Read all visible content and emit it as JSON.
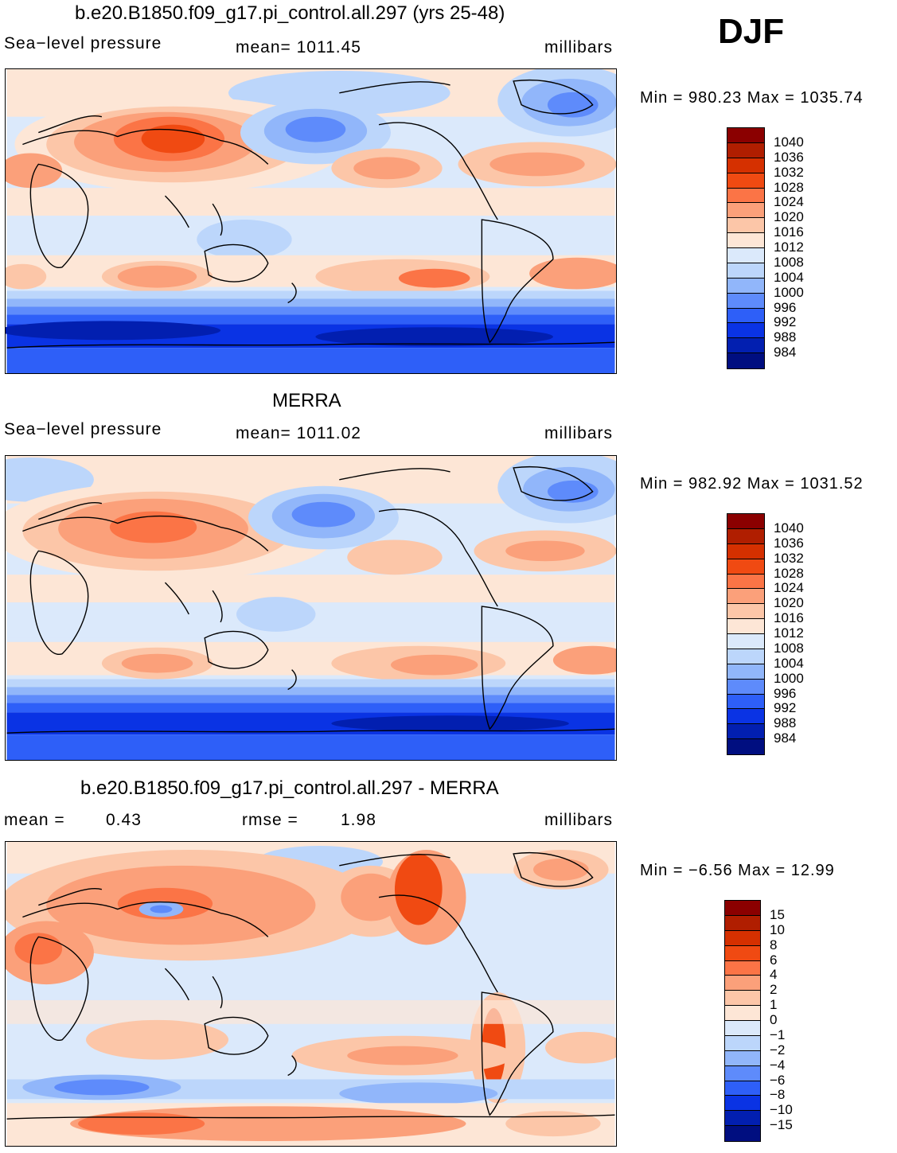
{
  "season": "DJF",
  "panels": [
    {
      "title": "b.e20.B1850.f09_g17.pi_control.all.297 (yrs 25-48)",
      "variable": "Sea−level pressure",
      "stat_text": "mean=  1011.45",
      "units": "millibars",
      "minmax": "Min  =  980.23  Max  =  1035.74"
    },
    {
      "title": "MERRA",
      "variable": "Sea−level pressure",
      "stat_text": "mean=  1011.02",
      "units": "millibars",
      "minmax": "Min  =  982.92  Max  =  1031.52"
    },
    {
      "title": "b.e20.B1850.f09_g17.pi_control.all.297 - MERRA",
      "mean_label": "mean  =",
      "mean_value": "0.43",
      "rmse_label": "rmse  =",
      "rmse_value": "1.98",
      "units": "millibars",
      "minmax": "Min  =    −6.56  Max  =     12.99"
    }
  ],
  "colorbars": {
    "slp": {
      "labels": [
        "1040",
        "1036",
        "1032",
        "1028",
        "1024",
        "1020",
        "1016",
        "1012",
        "1008",
        "1004",
        "1000",
        "996",
        "992",
        "988",
        "984"
      ],
      "colors": [
        "#8b0000",
        "#b01e00",
        "#d53000",
        "#f04a12",
        "#fb7446",
        "#fba07a",
        "#fcc6a8",
        "#fde6d6",
        "#dbe9fb",
        "#bcd6fb",
        "#91b6fa",
        "#5e8bfb",
        "#2e5ff8",
        "#0a33e4",
        "#021fb0",
        "#000e80"
      ]
    },
    "diff": {
      "labels": [
        "15",
        "10",
        "8",
        "6",
        "4",
        "2",
        "1",
        "0",
        "−1",
        "−2",
        "−4",
        "−6",
        "−8",
        "−10",
        "−15"
      ],
      "colors": [
        "#8b0000",
        "#b01e00",
        "#d53000",
        "#f04a12",
        "#fb7446",
        "#fba07a",
        "#fcc6a8",
        "#fde6d6",
        "#dbe9fb",
        "#bcd6fb",
        "#91b6fa",
        "#5e8bfb",
        "#2e5ff8",
        "#0a33e4",
        "#021fb0",
        "#000e80"
      ]
    }
  }
}
